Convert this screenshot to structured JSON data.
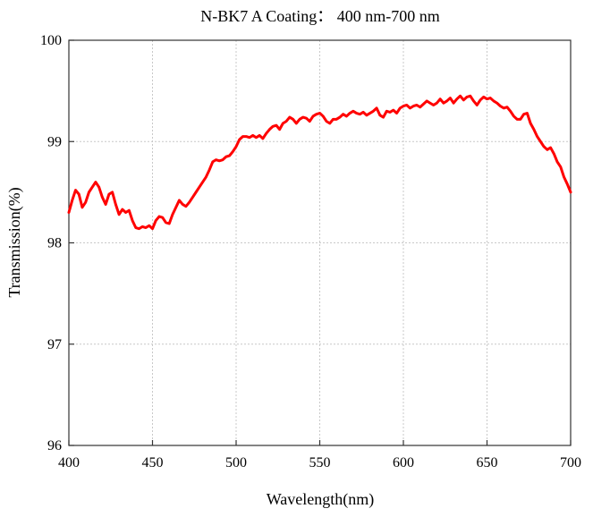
{
  "chart_data": {
    "type": "line",
    "title": "N-BK7 A Coating： 400 nm-700 nm",
    "xlabel": "Wavelength(nm)",
    "ylabel": "Transmission(%)",
    "xlim": [
      400,
      700
    ],
    "ylim": [
      96,
      100
    ],
    "xticks": [
      "400",
      "450",
      "500",
      "550",
      "600",
      "650",
      "700"
    ],
    "yticks": [
      "96",
      "97",
      "98",
      "99",
      "100"
    ],
    "grid": true,
    "line_color": "#ff0000",
    "series": [
      {
        "x": [
          400,
          402,
          404,
          406,
          408,
          410,
          412,
          414,
          416,
          418,
          420,
          422,
          424,
          426,
          428,
          430,
          432,
          434,
          436,
          438,
          440,
          442,
          444,
          446,
          448,
          450,
          452,
          454,
          456,
          458,
          460,
          462,
          464,
          466,
          468,
          470,
          472,
          474,
          476,
          478,
          480,
          482,
          484,
          486,
          488,
          490,
          492,
          494,
          496,
          498,
          500,
          502,
          504,
          506,
          508,
          510,
          512,
          514,
          516,
          518,
          520,
          522,
          524,
          526,
          528,
          530,
          532,
          534,
          536,
          538,
          540,
          542,
          544,
          546,
          548,
          550,
          552,
          554,
          556,
          558,
          560,
          562,
          564,
          566,
          568,
          570,
          572,
          574,
          576,
          578,
          580,
          582,
          584,
          586,
          588,
          590,
          592,
          594,
          596,
          598,
          600,
          602,
          604,
          606,
          608,
          610,
          612,
          614,
          616,
          618,
          620,
          622,
          624,
          626,
          628,
          630,
          632,
          634,
          636,
          638,
          640,
          642,
          644,
          646,
          648,
          650,
          652,
          654,
          656,
          658,
          660,
          662,
          664,
          666,
          668,
          670,
          672,
          674,
          676,
          678,
          680,
          682,
          684,
          686,
          688,
          690,
          692,
          694,
          696,
          698,
          700
        ],
        "values": [
          98.3,
          98.42,
          98.52,
          98.48,
          98.35,
          98.4,
          98.5,
          98.55,
          98.6,
          98.55,
          98.45,
          98.38,
          98.48,
          98.5,
          98.38,
          98.28,
          98.33,
          98.3,
          98.32,
          98.22,
          98.15,
          98.14,
          98.16,
          98.15,
          98.17,
          98.14,
          98.22,
          98.26,
          98.25,
          98.2,
          98.19,
          98.28,
          98.35,
          98.42,
          98.38,
          98.36,
          98.4,
          98.45,
          98.5,
          98.55,
          98.6,
          98.65,
          98.72,
          98.8,
          98.82,
          98.81,
          98.82,
          98.85,
          98.86,
          98.9,
          98.95,
          99.02,
          99.05,
          99.05,
          99.04,
          99.06,
          99.04,
          99.06,
          99.03,
          99.08,
          99.12,
          99.15,
          99.16,
          99.12,
          99.18,
          99.2,
          99.24,
          99.22,
          99.18,
          99.22,
          99.24,
          99.23,
          99.2,
          99.25,
          99.27,
          99.28,
          99.25,
          99.2,
          99.18,
          99.22,
          99.22,
          99.24,
          99.27,
          99.25,
          99.28,
          99.3,
          99.28,
          99.27,
          99.29,
          99.26,
          99.28,
          99.3,
          99.33,
          99.26,
          99.24,
          99.3,
          99.29,
          99.31,
          99.28,
          99.33,
          99.35,
          99.36,
          99.33,
          99.35,
          99.36,
          99.34,
          99.37,
          99.4,
          99.38,
          99.36,
          99.38,
          99.42,
          99.38,
          99.4,
          99.43,
          99.38,
          99.42,
          99.45,
          99.41,
          99.44,
          99.45,
          99.4,
          99.36,
          99.41,
          99.44,
          99.42,
          99.43,
          99.4,
          99.38,
          99.35,
          99.33,
          99.34,
          99.3,
          99.25,
          99.22,
          99.22,
          99.27,
          99.28,
          99.18,
          99.12,
          99.05,
          99.0,
          98.95,
          98.92,
          98.94,
          98.88,
          98.8,
          98.75,
          98.65,
          98.58,
          98.5
        ]
      }
    ]
  }
}
